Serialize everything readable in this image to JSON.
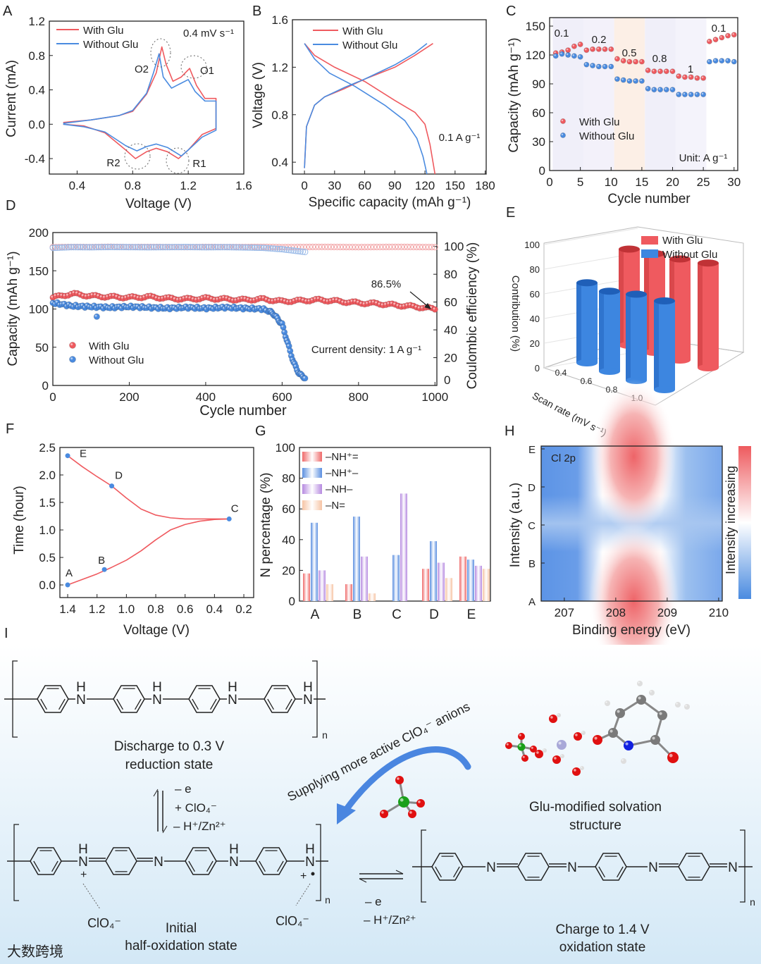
{
  "panel_labels": [
    "A",
    "B",
    "C",
    "D",
    "E",
    "F",
    "G",
    "H",
    "I"
  ],
  "colors": {
    "with_glu": "#ef5a5f",
    "without_glu": "#4a8be0",
    "schematic_blue": "#1f3fd6",
    "schematic_red": "#d0191e"
  },
  "chart_data": [
    {
      "id": "A",
      "type": "line",
      "xlabel": "Voltage (V)",
      "ylabel": "Current (mA)",
      "xlim": [
        0.2,
        1.6
      ],
      "ylim": [
        -0.58,
        1.2
      ],
      "xticks": [
        "0.4",
        "0.8",
        "1.2",
        "1.6"
      ],
      "yticks": [
        "-0.4",
        "0.0",
        "0.4",
        "0.8",
        "1.2"
      ],
      "annotation": "0.4 mV s⁻¹",
      "peak_labels": [
        "O2",
        "O1",
        "R2",
        "R1"
      ],
      "series": [
        {
          "name": "With Glu",
          "x": [
            0.3,
            0.5,
            0.7,
            0.8,
            0.9,
            0.97,
            1.01,
            1.04,
            1.09,
            1.15,
            1.21,
            1.26,
            1.32,
            1.4,
            1.4,
            1.3,
            1.2,
            1.13,
            1.05,
            0.97,
            0.9,
            0.82,
            0.75,
            0.6,
            0.45,
            0.3
          ],
          "y": [
            0.02,
            0.05,
            0.1,
            0.15,
            0.35,
            0.6,
            0.9,
            0.7,
            0.5,
            0.55,
            0.65,
            0.45,
            0.3,
            0.3,
            -0.05,
            -0.12,
            -0.3,
            -0.4,
            -0.32,
            -0.28,
            -0.32,
            -0.4,
            -0.3,
            -0.1,
            -0.02,
            0.0
          ]
        },
        {
          "name": "Without Glu",
          "x": [
            0.3,
            0.5,
            0.7,
            0.8,
            0.9,
            0.95,
            0.99,
            1.02,
            1.08,
            1.14,
            1.2,
            1.25,
            1.32,
            1.4,
            1.4,
            1.3,
            1.2,
            1.15,
            1.05,
            0.97,
            0.9,
            0.83,
            0.75,
            0.6,
            0.45,
            0.3
          ],
          "y": [
            0.01,
            0.05,
            0.1,
            0.16,
            0.36,
            0.6,
            0.82,
            0.55,
            0.42,
            0.47,
            0.52,
            0.38,
            0.27,
            0.27,
            -0.07,
            -0.15,
            -0.3,
            -0.37,
            -0.27,
            -0.23,
            -0.26,
            -0.31,
            -0.25,
            -0.09,
            -0.03,
            0.0
          ]
        }
      ]
    },
    {
      "id": "B",
      "type": "line",
      "xlabel": "Specific capacity (mAh g⁻¹)",
      "ylabel": "Voltage (V)",
      "xlim": [
        -12,
        181
      ],
      "ylim": [
        0.3,
        1.6
      ],
      "xticks": [
        "0",
        "30",
        "60",
        "90",
        "120",
        "150",
        "180"
      ],
      "yticks": [
        "0.4",
        "0.8",
        "1.2",
        "1.6"
      ],
      "annotation": "0.1 A g⁻¹",
      "series": [
        {
          "name": "With Glu",
          "discharge": {
            "x": [
              0,
              10,
              30,
              60,
              90,
              110,
              120,
              125,
              128,
              130
            ],
            "y": [
              1.4,
              1.3,
              1.2,
              1.08,
              0.92,
              0.82,
              0.72,
              0.55,
              0.4,
              0.3
            ]
          },
          "charge": {
            "x": [
              0,
              2,
              10,
              20,
              40,
              60,
              90,
              110,
              128
            ],
            "y": [
              0.35,
              0.7,
              0.88,
              0.95,
              1.02,
              1.1,
              1.2,
              1.3,
              1.4
            ]
          }
        },
        {
          "name": "Without Glu",
          "discharge": {
            "x": [
              0,
              10,
              25,
              50,
              80,
              100,
              112,
              118,
              122
            ],
            "y": [
              1.4,
              1.27,
              1.15,
              1.04,
              0.88,
              0.75,
              0.6,
              0.45,
              0.3
            ]
          },
          "charge": {
            "x": [
              0,
              2,
              10,
              20,
              40,
              60,
              90,
              110,
              122
            ],
            "y": [
              0.35,
              0.7,
              0.88,
              0.95,
              1.03,
              1.1,
              1.22,
              1.32,
              1.4
            ]
          }
        }
      ]
    },
    {
      "id": "C",
      "type": "scatter",
      "xlabel": "Cycle number",
      "ylabel": "Capacity (mAh g⁻¹)",
      "xlim": [
        0,
        30.6
      ],
      "ylim": [
        0,
        158.8
      ],
      "xticks": [
        "0",
        "5",
        "10",
        "15",
        "20",
        "25",
        "30"
      ],
      "yticks": [
        "0",
        "30",
        "60",
        "90",
        "120",
        "150"
      ],
      "rate_labels": [
        "0.1",
        "0.2",
        "0.5",
        "0.8",
        "1",
        "0.1"
      ],
      "unit_label": "Unit: A g⁻¹",
      "series": [
        {
          "name": "With Glu",
          "values": [
            122,
            123,
            125,
            129,
            131,
            125,
            126,
            126,
            126,
            126,
            116,
            114,
            113,
            113,
            113,
            104,
            103,
            103,
            103,
            103,
            98,
            97,
            97,
            96,
            96,
            134,
            136,
            138,
            140,
            141
          ]
        },
        {
          "name": "Without Glu",
          "values": [
            119,
            121,
            120,
            119,
            118,
            110,
            109,
            108,
            108,
            108,
            95,
            94,
            93,
            93,
            93,
            85,
            84,
            84,
            84,
            84,
            79,
            79,
            79,
            79,
            79,
            113,
            114,
            114,
            114,
            113
          ]
        }
      ]
    },
    {
      "id": "D",
      "type": "scatter",
      "xlabel": "Cycle number",
      "ylabel": "Capacity (mAh g⁻¹)",
      "y2label": "Coulombic efficiency (%)",
      "xlim": [
        0,
        1005
      ],
      "ylim": [
        0,
        200
      ],
      "y2lim": [
        0,
        110
      ],
      "xticks": [
        "0",
        "200",
        "400",
        "600",
        "800",
        "1000"
      ],
      "yticks": [
        "0",
        "50",
        "100",
        "150",
        "200"
      ],
      "y2ticks": [
        "0",
        "20",
        "40",
        "60",
        "80",
        "100"
      ],
      "retention_label": "86.5%",
      "annotation": "Current density: 1 A g⁻¹",
      "series": [
        {
          "name": "With Glu",
          "cycles": [
            0,
            50,
            100,
            150,
            200,
            250,
            300,
            350,
            400,
            450,
            500,
            550,
            600,
            650,
            700,
            750,
            800,
            850,
            900,
            950,
            1000
          ],
          "capacity": [
            115,
            120,
            117,
            116,
            115,
            116,
            114,
            113,
            114,
            113,
            112,
            113,
            110,
            111,
            112,
            110,
            108,
            107,
            105,
            103,
            100
          ],
          "ce": [
            99.5,
            99.7,
            99.6,
            99.8,
            99.6,
            99.7,
            99.6,
            99.5,
            99.7,
            99.6,
            99.6,
            99.7,
            99.5,
            99.6,
            99.7,
            99.6,
            99.5,
            99.6,
            99.7,
            99.6,
            99.5
          ]
        },
        {
          "name": "Without Glu",
          "cycles": [
            0,
            50,
            100,
            150,
            200,
            250,
            300,
            350,
            400,
            450,
            500,
            550,
            575,
            600,
            615,
            630,
            645,
            660
          ],
          "capacity": [
            108,
            104,
            103,
            102,
            103,
            102,
            101,
            102,
            101,
            102,
            101,
            100,
            95,
            80,
            55,
            30,
            15,
            10
          ],
          "ce": [
            99.0,
            99.5,
            99.4,
            99.6,
            99.5,
            99.4,
            99.5,
            99.6,
            99.4,
            99.5,
            99.3,
            99.0,
            98.5,
            98.0,
            97.5,
            97.0,
            96.5,
            96.0
          ],
          "outlier": {
            "cycle": 115,
            "capacity": 90
          }
        }
      ]
    },
    {
      "id": "E",
      "type": "bar",
      "xlabel": "Scan rate (mV s⁻¹)",
      "ylabel": "Contribution (%)",
      "ylim": [
        0,
        100
      ],
      "yticks": [
        "0",
        "20",
        "40",
        "60",
        "80",
        "100"
      ],
      "categories": [
        "0.4",
        "0.6",
        "0.8",
        "1.0"
      ],
      "series": [
        {
          "name": "With Glu",
          "values": [
            78,
            80,
            82,
            85
          ]
        },
        {
          "name": "Without Glu",
          "values": [
            65,
            65,
            70,
            72
          ]
        }
      ]
    },
    {
      "id": "F",
      "type": "line",
      "xlabel": "Voltage (V)",
      "ylabel": "Time (hour)",
      "xlim": [
        1.453,
        0.133
      ],
      "ylim": [
        -0.23,
        2.5
      ],
      "xticks": [
        "1.4",
        "1.2",
        "1.0",
        "0.8",
        "0.6",
        "0.4",
        "0.2"
      ],
      "yticks": [
        "0.0",
        "0.5",
        "1.0",
        "1.5",
        "2.0",
        "2.5"
      ],
      "charge_curve": {
        "x": [
          1.4,
          1.3,
          1.2,
          1.1,
          1.0,
          0.9,
          0.8,
          0.7,
          0.6,
          0.5,
          0.4,
          0.3
        ],
        "y": [
          0,
          0.1,
          0.2,
          0.32,
          0.45,
          0.62,
          0.82,
          1.0,
          1.1,
          1.16,
          1.19,
          1.2
        ]
      },
      "discharge_curve": {
        "x": [
          1.4,
          1.3,
          1.2,
          1.1,
          1.0,
          0.9,
          0.8,
          0.7,
          0.6,
          0.5,
          0.4,
          0.3
        ],
        "y": [
          2.35,
          2.15,
          1.97,
          1.8,
          1.58,
          1.38,
          1.27,
          1.22,
          1.2,
          1.2,
          1.2,
          1.2
        ]
      },
      "points": [
        {
          "label": "A",
          "x": 1.4,
          "y": 0.0
        },
        {
          "label": "B",
          "x": 1.15,
          "y": 0.28
        },
        {
          "label": "C",
          "x": 0.3,
          "y": 1.2
        },
        {
          "label": "D",
          "x": 1.1,
          "y": 1.8
        },
        {
          "label": "E",
          "x": 1.4,
          "y": 2.35
        }
      ]
    },
    {
      "id": "G",
      "type": "bar",
      "xlabel": "",
      "ylabel": "N percentage (%)",
      "ylim": [
        0,
        100
      ],
      "yticks": [
        "0",
        "20",
        "40",
        "60",
        "80",
        "100"
      ],
      "categories": [
        "A",
        "B",
        "C",
        "D",
        "E"
      ],
      "series": [
        {
          "name": "–NH⁺=",
          "color": "#ef6a6a",
          "values": [
            18,
            11,
            0,
            21,
            29
          ]
        },
        {
          "name": "–NH⁺–",
          "color": "#5b8fe0",
          "values": [
            51,
            55,
            30,
            39,
            27
          ]
        },
        {
          "name": "–NH–",
          "color": "#b68ae0",
          "values": [
            20,
            29,
            70,
            25,
            23
          ]
        },
        {
          "name": "–N=",
          "color": "#f6c4a4",
          "values": [
            11,
            5,
            0,
            15,
            21
          ]
        }
      ]
    },
    {
      "id": "H",
      "type": "heatmap",
      "title": "Cl 2p",
      "xlabel": "Binding energy (eV)",
      "ylabel": "Intensity (a.u.)",
      "colorbar_label": "Intensity increasing",
      "xlim": [
        206.55,
        210.07
      ],
      "xticks": [
        "207",
        "208",
        "209",
        "210"
      ],
      "yticks": [
        "A",
        "B",
        "C",
        "D",
        "E"
      ],
      "peak_center": 208.35
    }
  ],
  "schematic": {
    "discharge": [
      "Discharge to 0.3 V",
      "reduction state"
    ],
    "reduction_conditions": [
      "– e",
      "+ ClO₄⁻",
      "– H⁺/Zn²⁺"
    ],
    "supplying": "Supplying more active ClO₄⁻ anions",
    "solvation": [
      "Glu-modified solvation",
      "structure"
    ],
    "counter_ion_left": "ClO₄⁻",
    "counter_ion_right": "ClO₄⁻",
    "initial": [
      "Initial",
      "half-oxidation state"
    ],
    "oxidation_conditions": [
      "– e",
      "– H⁺/Zn²⁺"
    ],
    "charge": [
      "Charge to 1.4 V",
      "oxidation state"
    ],
    "atom_N": "N",
    "atom_H": "H",
    "repeat_n": "n",
    "watermark": "大数跨境"
  }
}
